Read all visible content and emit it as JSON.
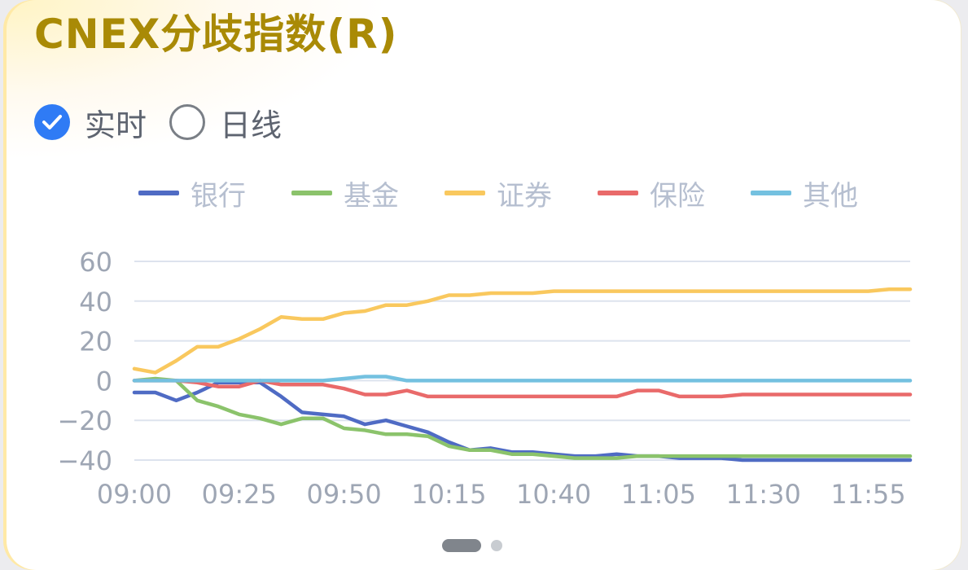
{
  "title": "CNEX分歧指数(R)",
  "modes": [
    {
      "label": "实时",
      "checked": true
    },
    {
      "label": "日线",
      "checked": false
    }
  ],
  "colors": {
    "title": "#a98a06",
    "radio_checked": "#2f7bf5",
    "grid": "#dde3ee",
    "tick_label": "#9ea6b4",
    "legend_label": "#b6bfd0"
  },
  "chart_data": {
    "type": "line",
    "legend_position": "top",
    "grid": true,
    "xlabel": "",
    "ylabel": "",
    "ylim": [
      -40,
      60
    ],
    "y_ticks": [
      60,
      40,
      20,
      0,
      -20,
      -40
    ],
    "x_tick_labels": [
      "09:00",
      "09:25",
      "09:50",
      "10:15",
      "10:40",
      "11:05",
      "11:30",
      "11:55"
    ],
    "x_minutes_step": 5,
    "series": [
      {
        "name": "银行",
        "color": "#4f6bc4",
        "values": [
          -6,
          -6,
          -10,
          -6,
          -1,
          -1,
          -1,
          -8,
          -16,
          -17,
          -18,
          -22,
          -20,
          -23,
          -26,
          -31,
          -35,
          -34,
          -36,
          -36,
          -37,
          -38,
          -38,
          -37,
          -38,
          -38,
          -39,
          -39,
          -39,
          -40,
          -40,
          -40,
          -40,
          -40,
          -40,
          -40,
          -40,
          -40
        ]
      },
      {
        "name": "基金",
        "color": "#8bc36b",
        "values": [
          0,
          1,
          0,
          -10,
          -13,
          -17,
          -19,
          -22,
          -19,
          -19,
          -24,
          -25,
          -27,
          -27,
          -28,
          -33,
          -35,
          -35,
          -37,
          -37,
          -38,
          -39,
          -39,
          -39,
          -38,
          -38,
          -38,
          -38,
          -38,
          -38,
          -38,
          -38,
          -38,
          -38,
          -38,
          -38,
          -38,
          -38
        ]
      },
      {
        "name": "证券",
        "color": "#f9c85e",
        "values": [
          6,
          4,
          10,
          17,
          17,
          21,
          26,
          32,
          31,
          31,
          34,
          35,
          38,
          38,
          40,
          43,
          43,
          44,
          44,
          44,
          45,
          45,
          45,
          45,
          45,
          45,
          45,
          45,
          45,
          45,
          45,
          45,
          45,
          45,
          45,
          45,
          46,
          46
        ]
      },
      {
        "name": "保险",
        "color": "#e96a6a",
        "values": [
          0,
          0,
          0,
          -1,
          -3,
          -3,
          0,
          -2,
          -2,
          -2,
          -4,
          -7,
          -7,
          -5,
          -8,
          -8,
          -8,
          -8,
          -8,
          -8,
          -8,
          -8,
          -8,
          -8,
          -5,
          -5,
          -8,
          -8,
          -8,
          -7,
          -7,
          -7,
          -7,
          -7,
          -7,
          -7,
          -7,
          -7
        ]
      },
      {
        "name": "其他",
        "color": "#74c1e0",
        "values": [
          0,
          0,
          0,
          0,
          0,
          0,
          0,
          0,
          0,
          0,
          1,
          2,
          2,
          0,
          0,
          0,
          0,
          0,
          0,
          0,
          0,
          0,
          0,
          0,
          0,
          0,
          0,
          0,
          0,
          0,
          0,
          0,
          0,
          0,
          0,
          0,
          0,
          0
        ]
      }
    ]
  },
  "pager": {
    "count": 2,
    "active": 0
  }
}
